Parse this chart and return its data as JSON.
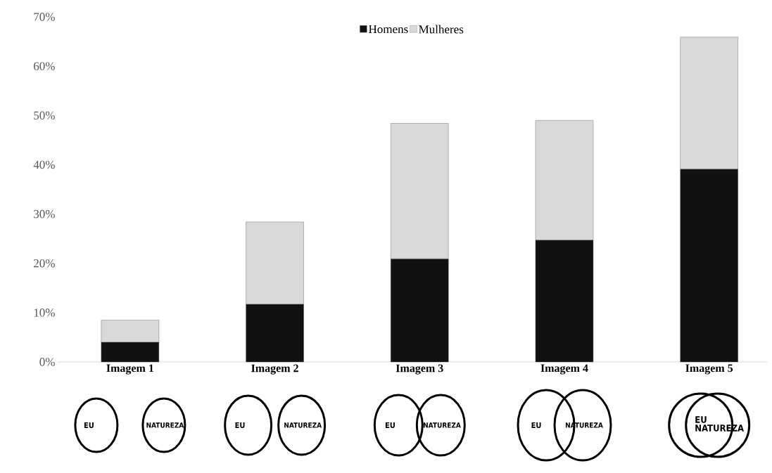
{
  "chart_data": {
    "type": "bar",
    "stacked": true,
    "categories": [
      "Imagem 1",
      "Imagem 2",
      "Imagem 3",
      "Imagem 4",
      "Imagem 5"
    ],
    "series": [
      {
        "name": "Homens",
        "color": "#111111",
        "values": [
          4.0,
          11.7,
          20.9,
          24.7,
          39.1
        ]
      },
      {
        "name": "Mulheres",
        "color": "#d9d9d9",
        "values": [
          4.5,
          16.7,
          27.5,
          24.3,
          26.8
        ]
      }
    ],
    "ylim": [
      0,
      70
    ],
    "yticks": [
      {
        "value": 0,
        "label": "0%"
      },
      {
        "value": 10,
        "label": "10%"
      },
      {
        "value": 20,
        "label": "20%"
      },
      {
        "value": 30,
        "label": "30%"
      },
      {
        "value": 40,
        "label": "40%"
      },
      {
        "value": 50,
        "label": "50%"
      },
      {
        "value": 60,
        "label": "60%"
      },
      {
        "value": 70,
        "label": "70%"
      }
    ],
    "legend": "top",
    "annotations": [
      "EU",
      "NATUREZA",
      "EU",
      "NATUREZA",
      "EU",
      "NATUREZA",
      "EU",
      "NATUREZA",
      "EU",
      "NATUREZA"
    ]
  }
}
